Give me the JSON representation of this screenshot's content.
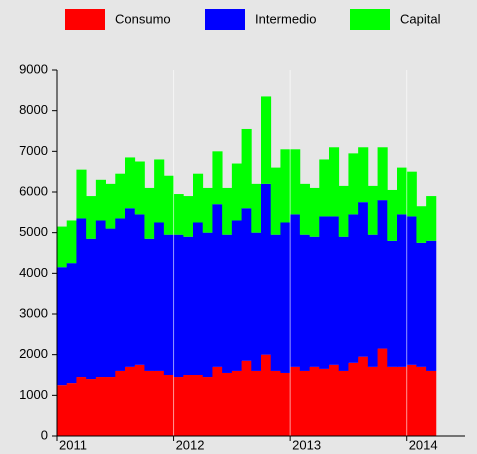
{
  "chart_data": {
    "type": "stacked-bar",
    "categories": [
      "2011",
      null,
      null,
      null,
      null,
      null,
      null,
      null,
      null,
      null,
      null,
      null,
      "2012",
      null,
      null,
      null,
      null,
      null,
      null,
      null,
      null,
      null,
      null,
      null,
      "2013",
      null,
      null,
      null,
      null,
      null,
      null,
      null,
      null,
      null,
      null,
      null,
      "2014",
      null,
      null
    ],
    "series": [
      {
        "name": "Consumo",
        "color": "#ff0000",
        "values": [
          1250,
          1300,
          1450,
          1400,
          1450,
          1450,
          1600,
          1700,
          1750,
          1600,
          1600,
          1500,
          1450,
          1500,
          1500,
          1450,
          1700,
          1550,
          1600,
          1850,
          1600,
          2000,
          1600,
          1550,
          1700,
          1600,
          1700,
          1650,
          1750,
          1600,
          1800,
          1950,
          1700,
          2150,
          1700,
          1700,
          1750,
          1700,
          1600
        ]
      },
      {
        "name": "Intermedio",
        "color": "#0000ff",
        "values": [
          2900,
          2950,
          3900,
          3450,
          3850,
          3650,
          3750,
          3900,
          3700,
          3250,
          3650,
          3450,
          3500,
          3400,
          3750,
          3550,
          4000,
          3400,
          3700,
          3750,
          3400,
          4200,
          3350,
          3700,
          3750,
          3350,
          3200,
          3750,
          3650,
          3300,
          3650,
          3800,
          3250,
          3650,
          3100,
          3750,
          3650,
          3050,
          3200
        ]
      },
      {
        "name": "Capital",
        "color": "#00ff00",
        "values": [
          1000,
          1050,
          1200,
          1050,
          1000,
          1100,
          1100,
          1250,
          1300,
          1250,
          1550,
          1450,
          1000,
          1000,
          1200,
          1100,
          1300,
          1150,
          1400,
          1950,
          1200,
          2150,
          1650,
          1800,
          1600,
          1250,
          1200,
          1400,
          1700,
          1250,
          1500,
          1350,
          1200,
          1300,
          1250,
          1150,
          1100,
          900,
          1100
        ]
      }
    ],
    "ylim": [
      0,
      9000
    ],
    "yticks": [
      0,
      1000,
      2000,
      3000,
      4000,
      5000,
      6000,
      7000,
      8000,
      9000
    ],
    "xgrid": true,
    "legend": "top"
  }
}
